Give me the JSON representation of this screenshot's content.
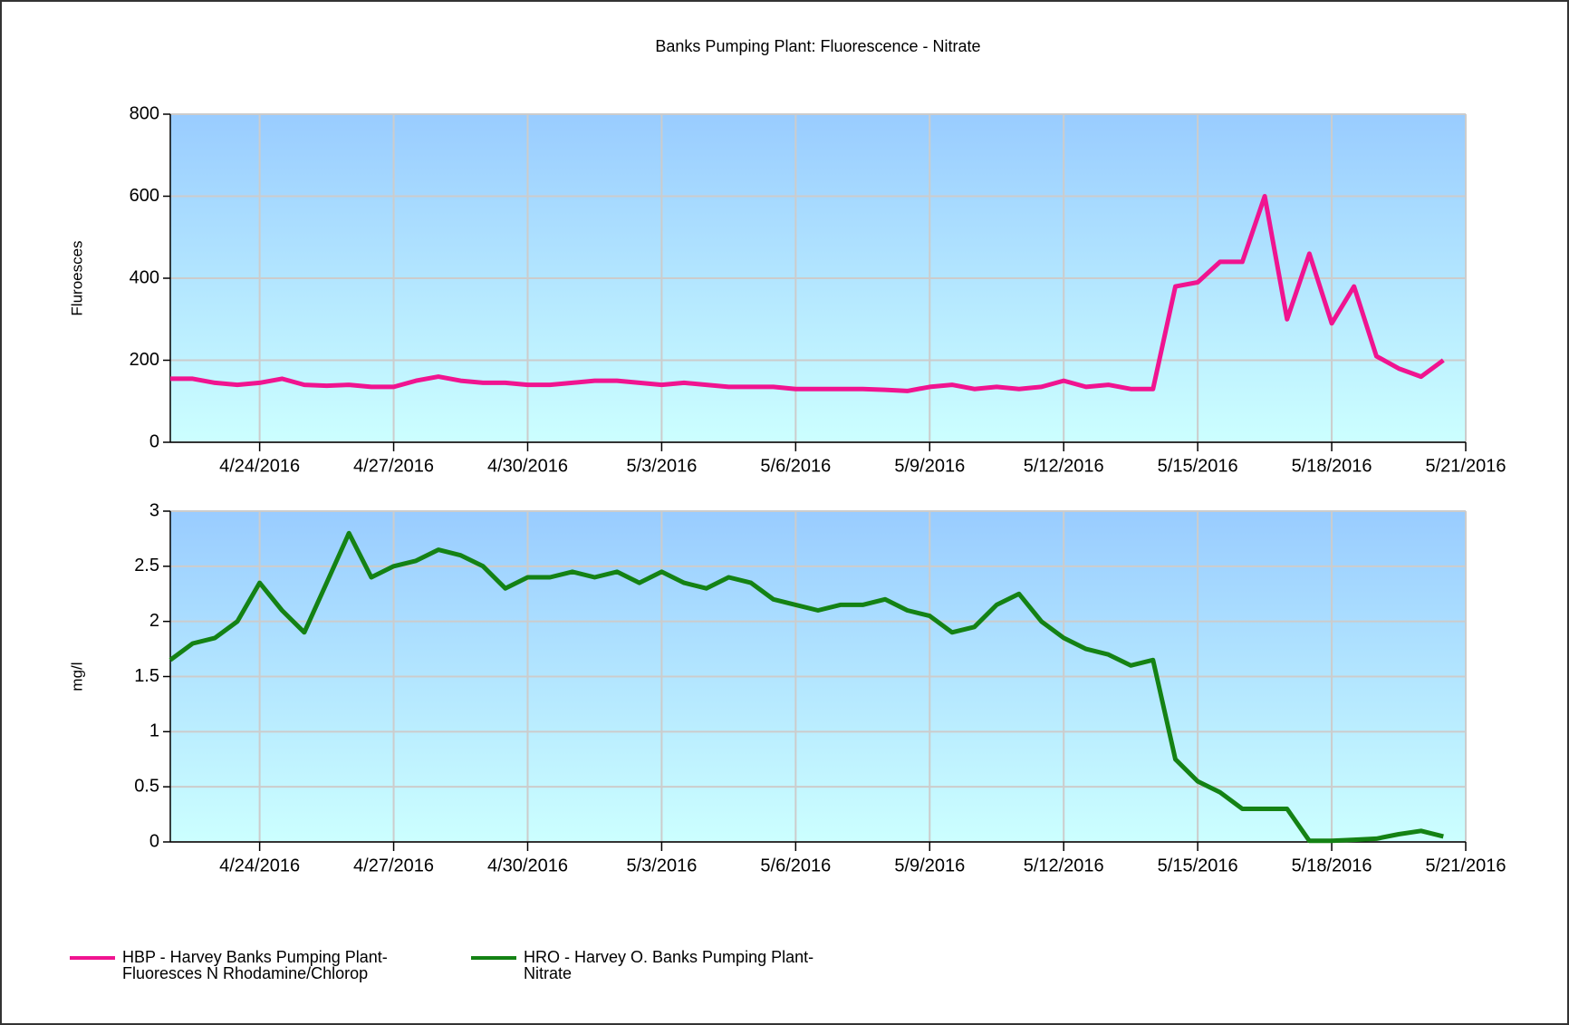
{
  "chart_data": [
    {
      "type": "line",
      "title": "Banks Pumping Plant: Fluorescence - Nitrate",
      "ylabel": "Fluroesces",
      "x": [
        "2016-04-22 00:00",
        "2016-04-22 12:00",
        "2016-04-23 00:00",
        "2016-04-23 12:00",
        "2016-04-24 00:00",
        "2016-04-24 12:00",
        "2016-04-25 00:00",
        "2016-04-25 12:00",
        "2016-04-26 00:00",
        "2016-04-26 12:00",
        "2016-04-27 00:00",
        "2016-04-27 12:00",
        "2016-04-28 00:00",
        "2016-04-28 12:00",
        "2016-04-29 00:00",
        "2016-04-29 12:00",
        "2016-04-30 00:00",
        "2016-04-30 12:00",
        "2016-05-01 00:00",
        "2016-05-01 12:00",
        "2016-05-02 00:00",
        "2016-05-02 12:00",
        "2016-05-03 00:00",
        "2016-05-03 12:00",
        "2016-05-04 00:00",
        "2016-05-04 12:00",
        "2016-05-05 00:00",
        "2016-05-05 12:00",
        "2016-05-06 00:00",
        "2016-05-06 12:00",
        "2016-05-07 00:00",
        "2016-05-07 12:00",
        "2016-05-08 00:00",
        "2016-05-08 12:00",
        "2016-05-09 00:00",
        "2016-05-09 12:00",
        "2016-05-10 00:00",
        "2016-05-10 12:00",
        "2016-05-11 00:00",
        "2016-05-11 12:00",
        "2016-05-12 00:00",
        "2016-05-12 12:00",
        "2016-05-13 00:00",
        "2016-05-13 12:00",
        "2016-05-14 00:00",
        "2016-05-14 12:00",
        "2016-05-15 00:00",
        "2016-05-15 12:00",
        "2016-05-16 00:00",
        "2016-05-16 12:00",
        "2016-05-17 00:00",
        "2016-05-17 12:00",
        "2016-05-18 00:00",
        "2016-05-18 12:00",
        "2016-05-19 00:00",
        "2016-05-19 12:00",
        "2016-05-20 00:00",
        "2016-05-20 12:00"
      ],
      "series": [
        {
          "name": "HBP - Harvey Banks Pumping Plant-Fluoresces N Rhodamine/Chlorop",
          "color": "#f01490",
          "values": [
            155,
            155,
            145,
            140,
            145,
            155,
            140,
            138,
            140,
            135,
            135,
            150,
            160,
            150,
            145,
            145,
            140,
            140,
            145,
            150,
            150,
            145,
            140,
            145,
            140,
            135,
            135,
            135,
            130,
            130,
            130,
            130,
            128,
            125,
            135,
            140,
            130,
            135,
            130,
            135,
            150,
            135,
            140,
            130,
            130,
            380,
            390,
            440,
            440,
            600,
            300,
            460,
            290,
            380,
            210,
            180,
            160,
            200
          ]
        }
      ],
      "xlim": [
        "2016-04-22 00:00",
        "2016-05-21 00:00"
      ],
      "xticks": [
        {
          "value": "2016-04-24 00:00",
          "label": "4/24/2016"
        },
        {
          "value": "2016-04-27 00:00",
          "label": "4/27/2016"
        },
        {
          "value": "2016-04-30 00:00",
          "label": "4/30/2016"
        },
        {
          "value": "2016-05-03 00:00",
          "label": "5/3/2016"
        },
        {
          "value": "2016-05-06 00:00",
          "label": "5/6/2016"
        },
        {
          "value": "2016-05-09 00:00",
          "label": "5/9/2016"
        },
        {
          "value": "2016-05-12 00:00",
          "label": "5/12/2016"
        },
        {
          "value": "2016-05-15 00:00",
          "label": "5/15/2016"
        },
        {
          "value": "2016-05-18 00:00",
          "label": "5/18/2016"
        },
        {
          "value": "2016-05-21 00:00",
          "label": "5/21/2016"
        }
      ],
      "ylim": [
        0,
        800
      ],
      "yticks": [
        0,
        200,
        400,
        600,
        800
      ],
      "grid": true,
      "legend": "bottom"
    },
    {
      "type": "line",
      "ylabel": "mg/l",
      "x": [
        "2016-04-22 00:00",
        "2016-04-22 12:00",
        "2016-04-23 00:00",
        "2016-04-23 12:00",
        "2016-04-24 00:00",
        "2016-04-24 12:00",
        "2016-04-25 00:00",
        "2016-04-25 12:00",
        "2016-04-26 00:00",
        "2016-04-26 12:00",
        "2016-04-27 00:00",
        "2016-04-27 12:00",
        "2016-04-28 00:00",
        "2016-04-28 12:00",
        "2016-04-29 00:00",
        "2016-04-29 12:00",
        "2016-04-30 00:00",
        "2016-04-30 12:00",
        "2016-05-01 00:00",
        "2016-05-01 12:00",
        "2016-05-02 00:00",
        "2016-05-02 12:00",
        "2016-05-03 00:00",
        "2016-05-03 12:00",
        "2016-05-04 00:00",
        "2016-05-04 12:00",
        "2016-05-05 00:00",
        "2016-05-05 12:00",
        "2016-05-06 00:00",
        "2016-05-06 12:00",
        "2016-05-07 00:00",
        "2016-05-07 12:00",
        "2016-05-08 00:00",
        "2016-05-08 12:00",
        "2016-05-09 00:00",
        "2016-05-09 12:00",
        "2016-05-10 00:00",
        "2016-05-10 12:00",
        "2016-05-11 00:00",
        "2016-05-11 12:00",
        "2016-05-12 00:00",
        "2016-05-12 12:00",
        "2016-05-13 00:00",
        "2016-05-13 12:00",
        "2016-05-14 00:00",
        "2016-05-14 12:00",
        "2016-05-15 00:00",
        "2016-05-15 12:00",
        "2016-05-16 00:00",
        "2016-05-16 12:00",
        "2016-05-17 00:00",
        "2016-05-17 12:00",
        "2016-05-18 00:00",
        "2016-05-18 12:00",
        "2016-05-19 00:00",
        "2016-05-19 12:00",
        "2016-05-20 00:00",
        "2016-05-20 12:00"
      ],
      "series": [
        {
          "name": "HRO - Harvey O. Banks Pumping Plant-Nitrate",
          "color": "#148214",
          "values": [
            1.65,
            1.8,
            1.85,
            2.0,
            2.35,
            2.1,
            1.9,
            2.35,
            2.8,
            2.4,
            2.5,
            2.55,
            2.65,
            2.6,
            2.5,
            2.3,
            2.4,
            2.4,
            2.45,
            2.4,
            2.45,
            2.35,
            2.45,
            2.35,
            2.3,
            2.4,
            2.35,
            2.2,
            2.15,
            2.1,
            2.15,
            2.15,
            2.2,
            2.1,
            2.05,
            1.9,
            1.95,
            2.15,
            2.25,
            2.0,
            1.85,
            1.75,
            1.7,
            1.6,
            1.65,
            0.75,
            0.55,
            0.45,
            0.3,
            0.3,
            0.3,
            0.01,
            0.01,
            0.02,
            0.03,
            0.07,
            0.1,
            0.05
          ]
        }
      ],
      "xlim": [
        "2016-04-22 00:00",
        "2016-05-21 00:00"
      ],
      "xticks": [
        {
          "value": "2016-04-24 00:00",
          "label": "4/24/2016"
        },
        {
          "value": "2016-04-27 00:00",
          "label": "4/27/2016"
        },
        {
          "value": "2016-04-30 00:00",
          "label": "4/30/2016"
        },
        {
          "value": "2016-05-03 00:00",
          "label": "5/3/2016"
        },
        {
          "value": "2016-05-06 00:00",
          "label": "5/6/2016"
        },
        {
          "value": "2016-05-09 00:00",
          "label": "5/9/2016"
        },
        {
          "value": "2016-05-12 00:00",
          "label": "5/12/2016"
        },
        {
          "value": "2016-05-15 00:00",
          "label": "5/15/2016"
        },
        {
          "value": "2016-05-18 00:00",
          "label": "5/18/2016"
        },
        {
          "value": "2016-05-21 00:00",
          "label": "5/21/2016"
        }
      ],
      "ylim": [
        0,
        3
      ],
      "yticks": [
        0,
        0.5,
        1,
        1.5,
        2,
        2.5,
        3
      ],
      "grid": true,
      "legend": "bottom"
    }
  ]
}
